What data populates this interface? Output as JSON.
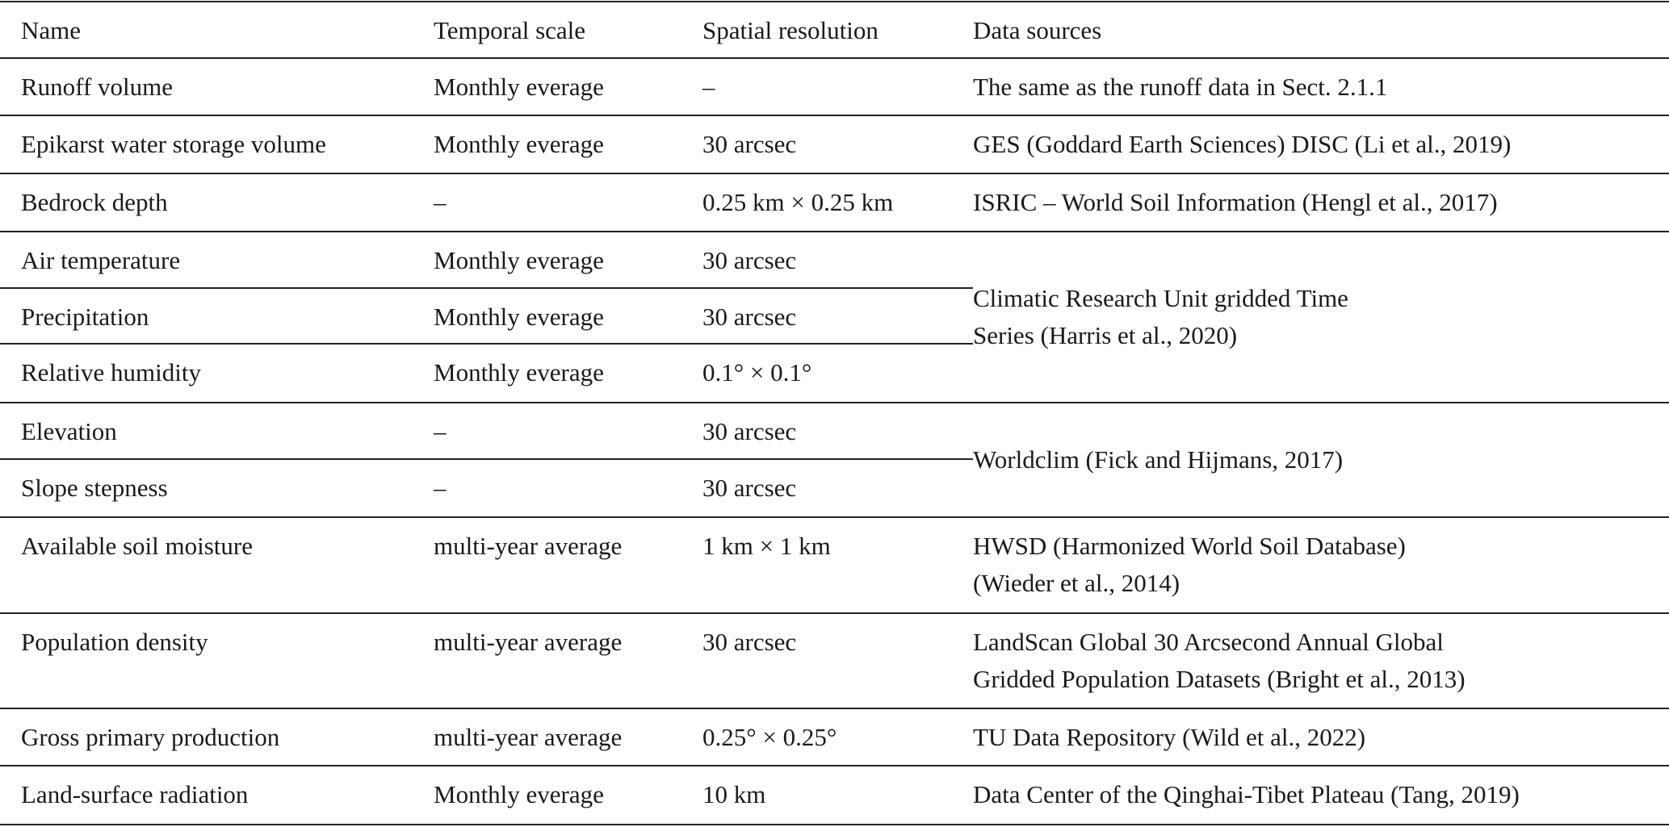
{
  "header": [
    "Name",
    "Temporal scale",
    "Spatial resolution",
    "Data sources"
  ],
  "groups": [
    {
      "rows": [
        [
          "Runoff volume",
          "Monthly everage",
          "–"
        ]
      ],
      "source": [
        "The same as the runoff data in Sect. 2.1.1"
      ]
    },
    {
      "rows": [
        [
          "Epikarst water storage volume",
          "Monthly everage",
          "30 arcsec"
        ]
      ],
      "source": [
        "GES (Goddard Earth Sciences) DISC (Li et al., 2019)"
      ]
    },
    {
      "rows": [
        [
          "Bedrock depth",
          "–",
          "0.25 km × 0.25 km"
        ]
      ],
      "source": [
        "ISRIC – World Soil Information (Hengl et al., 2017)"
      ]
    },
    {
      "rows": [
        [
          "Air temperature",
          "Monthly everage",
          "30 arcsec"
        ],
        [
          "Precipitation",
          "Monthly everage",
          "30 arcsec"
        ],
        [
          "Relative humidity",
          "Monthly everage",
          "0.1° × 0.1°"
        ]
      ],
      "source": [
        "Climatic Research Unit gridded Time",
        "Series (Harris et al., 2020)"
      ]
    },
    {
      "rows": [
        [
          "Elevation",
          "–",
          "30 arcsec"
        ],
        [
          "Slope stepness",
          "–",
          "30 arcsec"
        ]
      ],
      "source": [
        "Worldclim (Fick and Hijmans, 2017)"
      ]
    },
    {
      "rows": [
        [
          "Available soil moisture",
          "multi-year average",
          "1 km × 1 km"
        ]
      ],
      "source": [
        "HWSD (Harmonized World Soil Database)",
        "(Wieder et al., 2014)"
      ]
    },
    {
      "rows": [
        [
          "Population density",
          "multi-year average",
          "30 arcsec"
        ]
      ],
      "source": [
        "LandScan Global 30 Arcsecond Annual Global",
        "Gridded Population Datasets (Bright et al., 2013)"
      ]
    },
    {
      "rows": [
        [
          "Gross primary production",
          "multi-year average",
          "0.25° × 0.25°"
        ]
      ],
      "source": [
        "TU Data Repository (Wild et al., 2022)"
      ]
    },
    {
      "rows": [
        [
          "Land-surface radiation",
          "Monthly everage",
          "10 km"
        ]
      ],
      "source": [
        "Data Center of the Qinghai-Tibet Plateau (Tang, 2019)"
      ]
    }
  ]
}
